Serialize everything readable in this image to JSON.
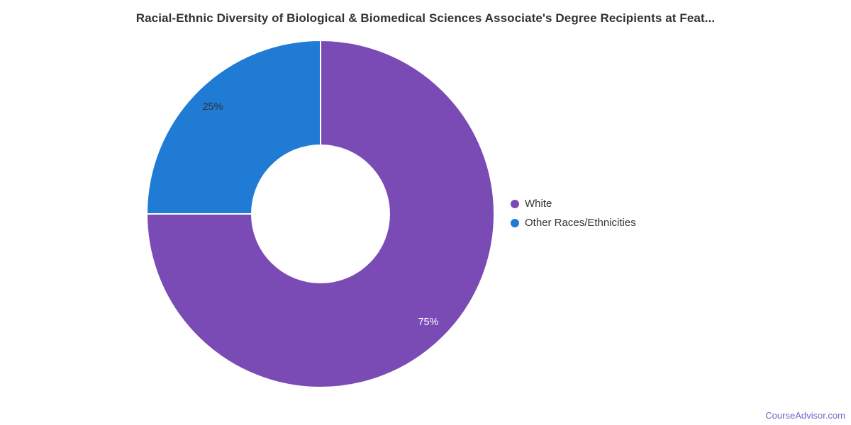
{
  "chart_data": {
    "type": "pie",
    "donut": true,
    "title": "Racial-Ethnic Diversity of Biological & Biomedical Sciences Associate's Degree Recipients at Feat...",
    "start_angle_deg": -90,
    "direction": "clockwise",
    "legend_position": "right-middle",
    "slices": [
      {
        "label": "White",
        "value": 75,
        "display": "75%",
        "color": "#7B4BB5",
        "label_color": "#ffffff"
      },
      {
        "label": "Other Races/Ethnicities",
        "value": 25,
        "display": "25%",
        "color": "#1F7BD4",
        "label_color": "#333333"
      }
    ]
  },
  "footer": {
    "watermark": "CourseAdvisor.com",
    "watermark_color": "#7766C6"
  }
}
